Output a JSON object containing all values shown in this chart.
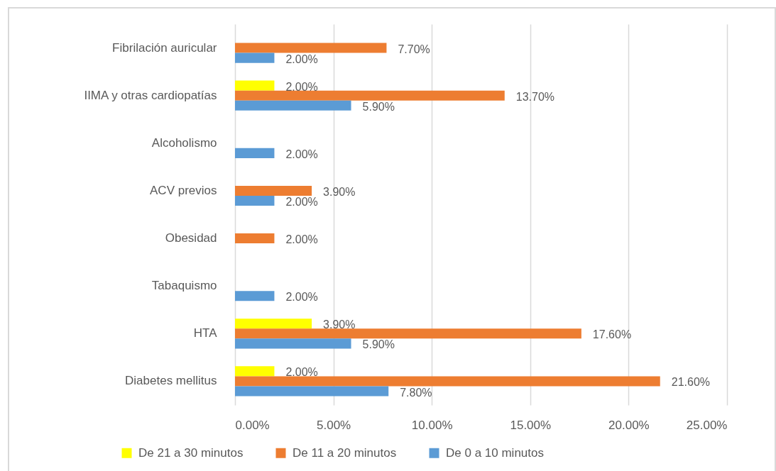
{
  "chart_data": {
    "type": "bar",
    "orientation": "horizontal",
    "categories": [
      "Fibrilación auricular",
      "IIMA y otras cardiopatías",
      "Alcoholismo",
      "ACV previos",
      "Obesidad",
      "Tabaquismo",
      "HTA",
      "Diabetes mellitus"
    ],
    "series": [
      {
        "name": "De 21 a 30 minutos",
        "color": "#ffff00",
        "values": [
          null,
          2.0,
          null,
          null,
          null,
          null,
          3.9,
          2.0
        ],
        "value_labels": [
          null,
          "2.00%",
          null,
          null,
          null,
          null,
          "3.90%",
          "2.00%"
        ]
      },
      {
        "name": "De 11 a 20 minutos",
        "color": "#ed7d31",
        "values": [
          7.7,
          13.7,
          null,
          3.9,
          2.0,
          null,
          17.6,
          21.6
        ],
        "value_labels": [
          "7.70%",
          "13.70%",
          null,
          "3.90%",
          "2.00%",
          null,
          "17.60%",
          "21.60%"
        ]
      },
      {
        "name": "De 0 a 10 minutos",
        "color": "#5b9bd5",
        "values": [
          2.0,
          5.9,
          2.0,
          2.0,
          null,
          2.0,
          5.9,
          7.8
        ],
        "value_labels": [
          "2.00%",
          "5.90%",
          "2.00%",
          "2.00%",
          null,
          "2.00%",
          "5.90%",
          "7.80%"
        ]
      }
    ],
    "xlim": [
      0,
      25
    ],
    "xticks": [
      {
        "value": 0,
        "label": "0.00%"
      },
      {
        "value": 5,
        "label": "5.00%"
      },
      {
        "value": 10,
        "label": "10.00%"
      },
      {
        "value": 15,
        "label": "15.00%"
      },
      {
        "value": 20,
        "label": "20.00%"
      },
      {
        "value": 25,
        "label": "25.00%"
      }
    ],
    "grid": "x",
    "legend": "bottom"
  }
}
